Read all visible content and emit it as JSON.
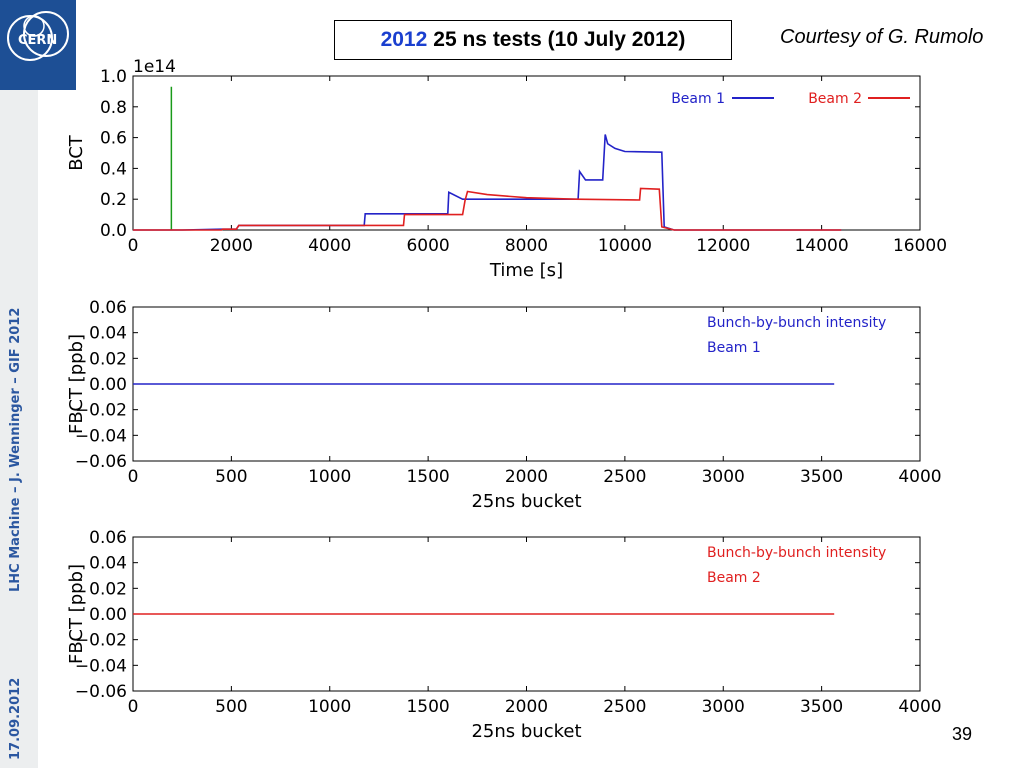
{
  "header": {
    "title_year": "2012",
    "title_rest": "25 ns tests (10 July 2012)",
    "courtesy": "Courtesy of G. Rumolo",
    "logo_text": "CERN"
  },
  "sidebar": {
    "footer_text": "LHC Machine  –  J. Wenninger – GIF 2012",
    "date": "17.09.2012"
  },
  "page_number": "39",
  "colors": {
    "beam1": "#2323c8",
    "beam2": "#e02020",
    "marker": "#1a9a1a",
    "brand": "#1d4f95"
  },
  "chart_data": [
    {
      "type": "line",
      "xlabel": "Time [s]",
      "ylabel": "BCT",
      "y_offset_text": "1e14",
      "xlim": [
        0,
        16000
      ],
      "ylim": [
        0.0,
        1.0
      ],
      "xticks": [
        0,
        2000,
        4000,
        6000,
        8000,
        10000,
        12000,
        14000,
        16000
      ],
      "yticks": [
        0.0,
        0.2,
        0.4,
        0.6,
        0.8,
        1.0
      ],
      "xtick_labels": [
        "0",
        "2000",
        "4000",
        "6000",
        "8000",
        "10000",
        "12000",
        "14000",
        "16000"
      ],
      "ytick_labels": [
        "0.0",
        "0.2",
        "0.4",
        "0.6",
        "0.8",
        "1.0"
      ],
      "grid": false,
      "legend_position": "top-right",
      "vertical_marker": {
        "x": 780,
        "y_from": 0.0,
        "y_to": 0.93
      },
      "series": [
        {
          "name": "Beam 1",
          "color": "#2323c8",
          "x": [
            0,
            1000,
            1800,
            2100,
            2150,
            4700,
            4720,
            5500,
            6400,
            6420,
            6700,
            6800,
            9050,
            9080,
            9200,
            9550,
            9600,
            9650,
            9800,
            10000,
            10750,
            10800,
            11000,
            14400
          ],
          "y": [
            0.0,
            0.0,
            0.005,
            0.005,
            0.03,
            0.03,
            0.105,
            0.105,
            0.105,
            0.245,
            0.2,
            0.2,
            0.2,
            0.38,
            0.325,
            0.325,
            0.62,
            0.56,
            0.53,
            0.51,
            0.505,
            0.02,
            0.0,
            0.0
          ]
        },
        {
          "name": "Beam 2",
          "color": "#e02020",
          "x": [
            0,
            1800,
            1820,
            2100,
            2150,
            5500,
            5520,
            6700,
            6750,
            6800,
            7200,
            8000,
            9000,
            10300,
            10320,
            10700,
            10750,
            11000,
            14400
          ],
          "y": [
            0.0,
            0.0,
            0.005,
            0.005,
            0.03,
            0.03,
            0.1,
            0.1,
            0.19,
            0.25,
            0.23,
            0.21,
            0.2,
            0.195,
            0.27,
            0.265,
            0.02,
            0.0,
            0.0
          ]
        }
      ]
    },
    {
      "type": "line",
      "xlabel": "25ns bucket",
      "ylabel": "FBCT [ppb]",
      "xlim": [
        0,
        4000
      ],
      "ylim": [
        -0.06,
        0.06
      ],
      "xticks": [
        0,
        500,
        1000,
        1500,
        2000,
        2500,
        3000,
        3500,
        4000
      ],
      "yticks": [
        -0.06,
        -0.04,
        -0.02,
        0.0,
        0.02,
        0.04,
        0.06
      ],
      "xtick_labels": [
        "0",
        "500",
        "1000",
        "1500",
        "2000",
        "2500",
        "3000",
        "3500",
        "4000"
      ],
      "ytick_labels": [
        "−0.06",
        "−0.04",
        "−0.02",
        "0.00",
        "0.02",
        "0.04",
        "0.06"
      ],
      "grid": false,
      "annotation": [
        "Bunch-by-bunch intensity",
        "Beam 1"
      ],
      "series": [
        {
          "color": "#2323c8",
          "x": [
            0,
            3564
          ],
          "y": [
            0.0,
            0.0
          ]
        }
      ]
    },
    {
      "type": "line",
      "xlabel": "25ns bucket",
      "ylabel": "FBCT [ppb]",
      "xlim": [
        0,
        4000
      ],
      "ylim": [
        -0.06,
        0.06
      ],
      "xticks": [
        0,
        500,
        1000,
        1500,
        2000,
        2500,
        3000,
        3500,
        4000
      ],
      "yticks": [
        -0.06,
        -0.04,
        -0.02,
        0.0,
        0.02,
        0.04,
        0.06
      ],
      "xtick_labels": [
        "0",
        "500",
        "1000",
        "1500",
        "2000",
        "2500",
        "3000",
        "3500",
        "4000"
      ],
      "ytick_labels": [
        "−0.06",
        "−0.04",
        "−0.02",
        "0.00",
        "0.02",
        "0.04",
        "0.06"
      ],
      "grid": false,
      "annotation": [
        "Bunch-by-bunch intensity",
        "Beam 2"
      ],
      "series": [
        {
          "color": "#e02020",
          "x": [
            0,
            3564
          ],
          "y": [
            0.0,
            0.0
          ]
        }
      ]
    }
  ]
}
